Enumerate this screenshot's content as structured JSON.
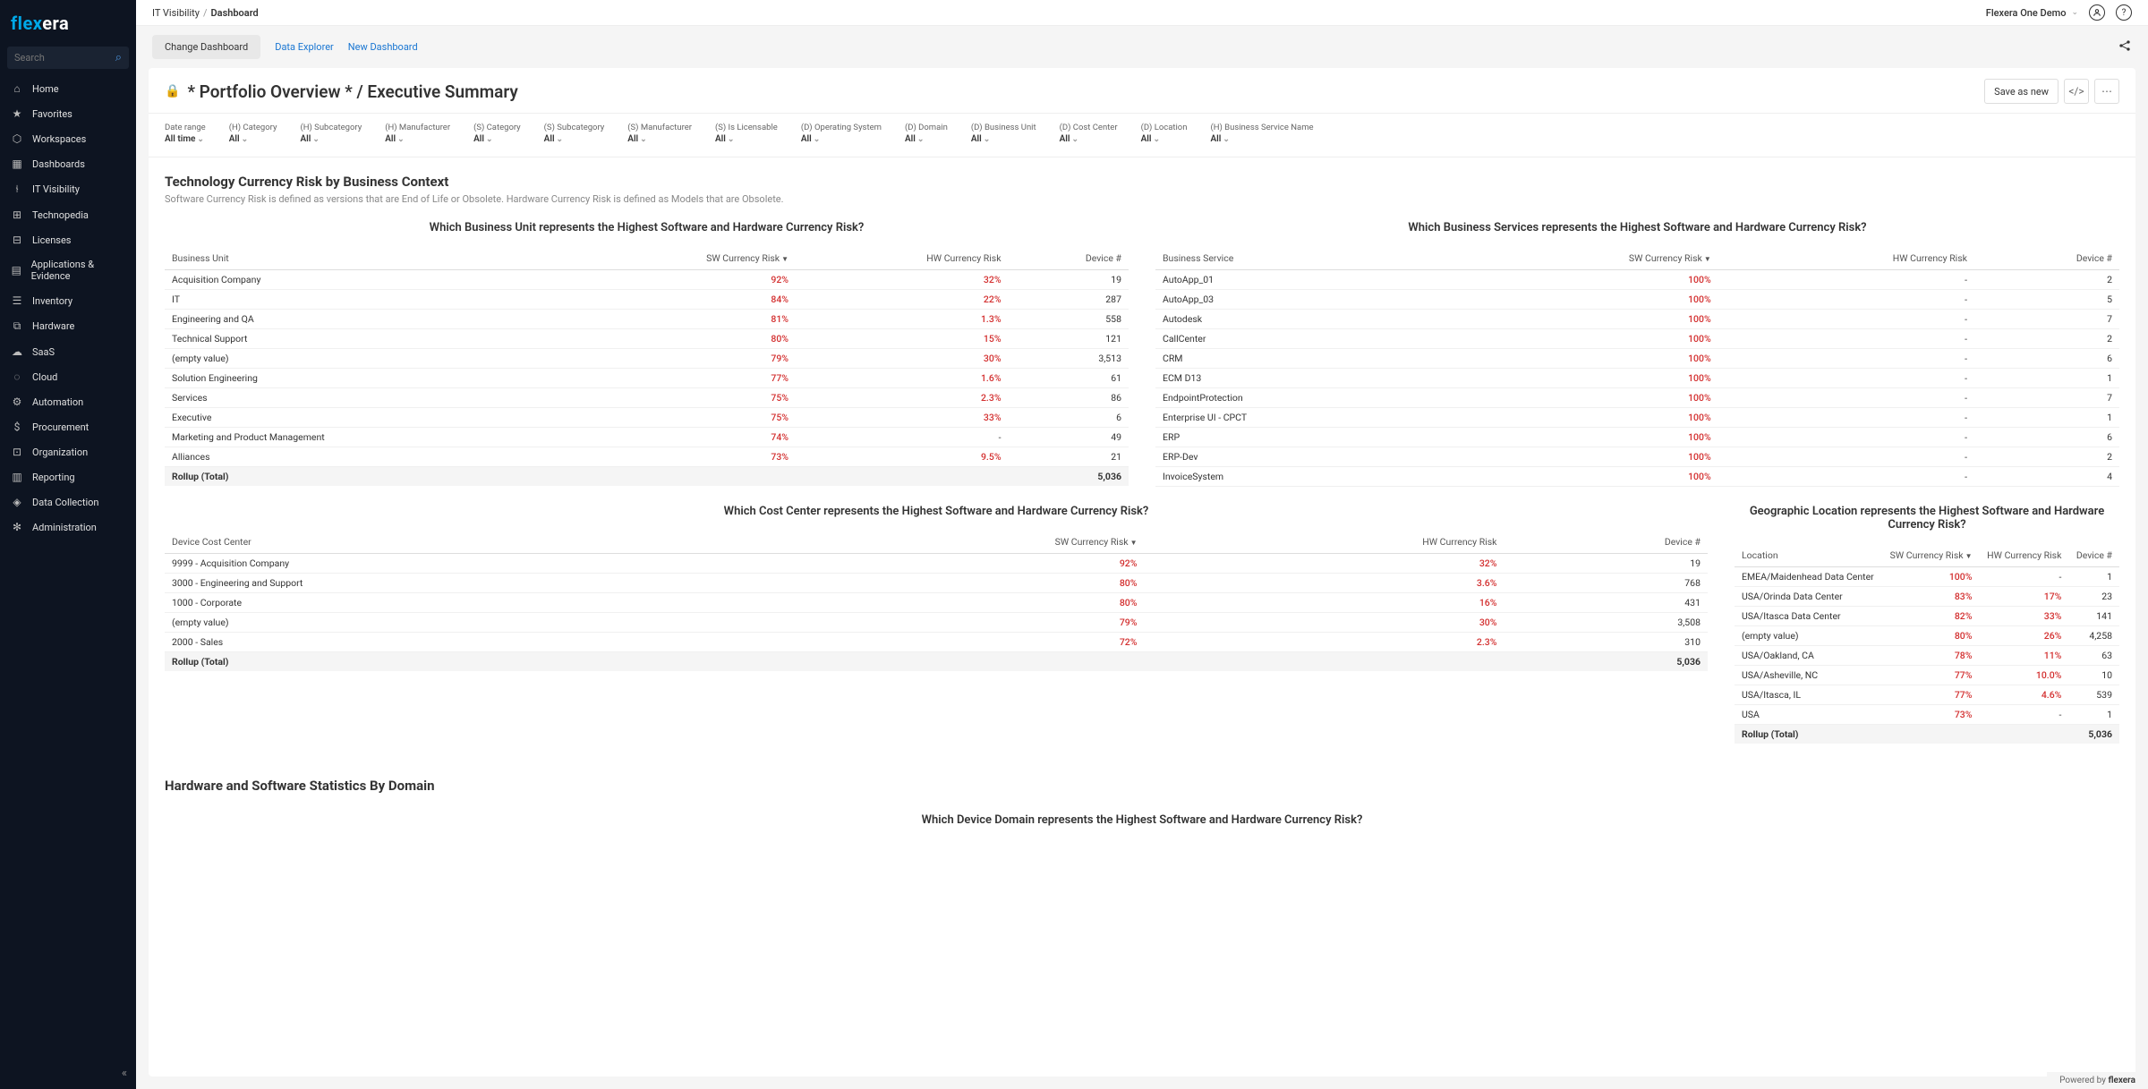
{
  "brand": {
    "part1": "flex",
    "part2": "era"
  },
  "search": {
    "placeholder": "Search"
  },
  "nav": [
    {
      "icon": "⌂",
      "label": "Home"
    },
    {
      "icon": "★",
      "label": "Favorites"
    },
    {
      "icon": "⬡",
      "label": "Workspaces"
    },
    {
      "icon": "▦",
      "label": "Dashboards"
    },
    {
      "icon": "⫮",
      "label": "IT Visibility"
    },
    {
      "icon": "⊞",
      "label": "Technopedia"
    },
    {
      "icon": "⊟",
      "label": "Licenses"
    },
    {
      "icon": "▤",
      "label": "Applications & Evidence"
    },
    {
      "icon": "☰",
      "label": "Inventory"
    },
    {
      "icon": "⧉",
      "label": "Hardware"
    },
    {
      "icon": "☁",
      "label": "SaaS"
    },
    {
      "icon": "◌",
      "label": "Cloud"
    },
    {
      "icon": "⚙",
      "label": "Automation"
    },
    {
      "icon": "$",
      "label": "Procurement"
    },
    {
      "icon": "⊡",
      "label": "Organization"
    },
    {
      "icon": "▥",
      "label": "Reporting"
    },
    {
      "icon": "◈",
      "label": "Data Collection"
    },
    {
      "icon": "✻",
      "label": "Administration"
    }
  ],
  "breadcrumb": {
    "parent": "IT Visibility",
    "current": "Dashboard"
  },
  "account": "Flexera One Demo",
  "tabs": {
    "change": "Change Dashboard",
    "explorer": "Data Explorer",
    "newdash": "New Dashboard"
  },
  "pageTitle": "* Portfolio Overview * / Executive Summary",
  "actions": {
    "saveNew": "Save as new"
  },
  "filters": [
    {
      "label": "Date range",
      "value": "All time"
    },
    {
      "label": "(H) Category",
      "value": "All"
    },
    {
      "label": "(H) Subcategory",
      "value": "All"
    },
    {
      "label": "(H) Manufacturer",
      "value": "All"
    },
    {
      "label": "(S) Category",
      "value": "All"
    },
    {
      "label": "(S) Subcategory",
      "value": "All"
    },
    {
      "label": "(S) Manufacturer",
      "value": "All"
    },
    {
      "label": "(S) Is Licensable",
      "value": "All"
    },
    {
      "label": "(D) Operating System",
      "value": "All"
    },
    {
      "label": "(D) Domain",
      "value": "All"
    },
    {
      "label": "(D) Business Unit",
      "value": "All"
    },
    {
      "label": "(D) Cost Center",
      "value": "All"
    },
    {
      "label": "(D) Location",
      "value": "All"
    },
    {
      "label": "(H) Business Service Name",
      "value": "All"
    }
  ],
  "section1": {
    "title": "Technology Currency Risk by Business Context",
    "sub": "Software Currency Risk is defined as versions that are End of Life or Obsolete.  Hardware Currency Risk is defined as Models that are Obsolete."
  },
  "cols": {
    "sw": "SW Currency Risk",
    "hw": "HW Currency Risk",
    "dev": "Device #",
    "rollup": "Rollup (Total)"
  },
  "tableBU": {
    "title": "Which Business Unit represents the Highest Software and Hardware Currency Risk?",
    "dimCol": "Business Unit",
    "rows": [
      {
        "dim": "Acquisition Company",
        "sw": "92%",
        "hw": "32%",
        "dev": "19"
      },
      {
        "dim": "IT",
        "sw": "84%",
        "hw": "22%",
        "dev": "287"
      },
      {
        "dim": "Engineering and QA",
        "sw": "81%",
        "hw": "1.3%",
        "dev": "558"
      },
      {
        "dim": "Technical Support",
        "sw": "80%",
        "hw": "15%",
        "dev": "121"
      },
      {
        "dim": "(empty value)",
        "sw": "79%",
        "hw": "30%",
        "dev": "3,513"
      },
      {
        "dim": "Solution Engineering",
        "sw": "77%",
        "hw": "1.6%",
        "dev": "61"
      },
      {
        "dim": "Services",
        "sw": "75%",
        "hw": "2.3%",
        "dev": "86"
      },
      {
        "dim": "Executive",
        "sw": "75%",
        "hw": "33%",
        "dev": "6"
      },
      {
        "dim": "Marketing and Product Management",
        "sw": "74%",
        "hw": "-",
        "dev": "49"
      },
      {
        "dim": "Alliances",
        "sw": "73%",
        "hw": "9.5%",
        "dev": "21"
      }
    ],
    "total": "5,036"
  },
  "tableBS": {
    "title": "Which Business Services represents the Highest Software and Hardware Currency Risk?",
    "dimCol": "Business Service",
    "rows": [
      {
        "dim": "AutoApp_01",
        "sw": "100%",
        "hw": "-",
        "dev": "2"
      },
      {
        "dim": "AutoApp_03",
        "sw": "100%",
        "hw": "-",
        "dev": "5"
      },
      {
        "dim": "Autodesk",
        "sw": "100%",
        "hw": "-",
        "dev": "7"
      },
      {
        "dim": "CallCenter",
        "sw": "100%",
        "hw": "-",
        "dev": "2"
      },
      {
        "dim": "CRM",
        "sw": "100%",
        "hw": "-",
        "dev": "6"
      },
      {
        "dim": "ECM D13",
        "sw": "100%",
        "hw": "-",
        "dev": "1"
      },
      {
        "dim": "EndpointProtection",
        "sw": "100%",
        "hw": "-",
        "dev": "7"
      },
      {
        "dim": "Enterprise UI - CPCT",
        "sw": "100%",
        "hw": "-",
        "dev": "1"
      },
      {
        "dim": "ERP",
        "sw": "100%",
        "hw": "-",
        "dev": "6"
      },
      {
        "dim": "ERP-Dev",
        "sw": "100%",
        "hw": "-",
        "dev": "2"
      },
      {
        "dim": "InvoiceSystem",
        "sw": "100%",
        "hw": "-",
        "dev": "4"
      }
    ]
  },
  "tableCC": {
    "title": "Which Cost Center represents the Highest Software and Hardware Currency Risk?",
    "dimCol": "Device Cost Center",
    "rows": [
      {
        "dim": "9999 - Acquisition Company",
        "sw": "92%",
        "hw": "32%",
        "dev": "19"
      },
      {
        "dim": "3000 - Engineering and Support",
        "sw": "80%",
        "hw": "3.6%",
        "dev": "768"
      },
      {
        "dim": "1000 - Corporate",
        "sw": "80%",
        "hw": "16%",
        "dev": "431"
      },
      {
        "dim": "(empty value)",
        "sw": "79%",
        "hw": "30%",
        "dev": "3,508"
      },
      {
        "dim": "2000 - Sales",
        "sw": "72%",
        "hw": "2.3%",
        "dev": "310"
      }
    ],
    "total": "5,036"
  },
  "tableLoc": {
    "title": "Geographic Location represents the Highest Software and Hardware Currency Risk?",
    "dimCol": "Location",
    "rows": [
      {
        "dim": "EMEA/Maidenhead Data Center",
        "sw": "100%",
        "hw": "-",
        "dev": "1"
      },
      {
        "dim": "USA/Orinda Data Center",
        "sw": "83%",
        "hw": "17%",
        "dev": "23"
      },
      {
        "dim": "USA/Itasca Data Center",
        "sw": "82%",
        "hw": "33%",
        "dev": "141"
      },
      {
        "dim": "(empty value)",
        "sw": "80%",
        "hw": "26%",
        "dev": "4,258"
      },
      {
        "dim": "USA/Oakland, CA",
        "sw": "78%",
        "hw": "11%",
        "dev": "63"
      },
      {
        "dim": "USA/Asheville, NC",
        "sw": "77%",
        "hw": "10.0%",
        "dev": "10"
      },
      {
        "dim": "USA/Itasca, IL",
        "sw": "77%",
        "hw": "4.6%",
        "dev": "539"
      },
      {
        "dim": "USA",
        "sw": "73%",
        "hw": "-",
        "dev": "1"
      }
    ],
    "total": "5,036"
  },
  "section2": {
    "title": "Hardware and Software Statistics By Domain"
  },
  "tableDomain": {
    "title": "Which Device Domain represents the Highest Software and Hardware Currency Risk?"
  },
  "footer": {
    "text": "Powered by",
    "brand": "flexera"
  },
  "colors": {
    "risk": "#d32f2f",
    "link": "#1976d2",
    "sidebar": "#0d1421",
    "accent": "#00a8e8"
  }
}
